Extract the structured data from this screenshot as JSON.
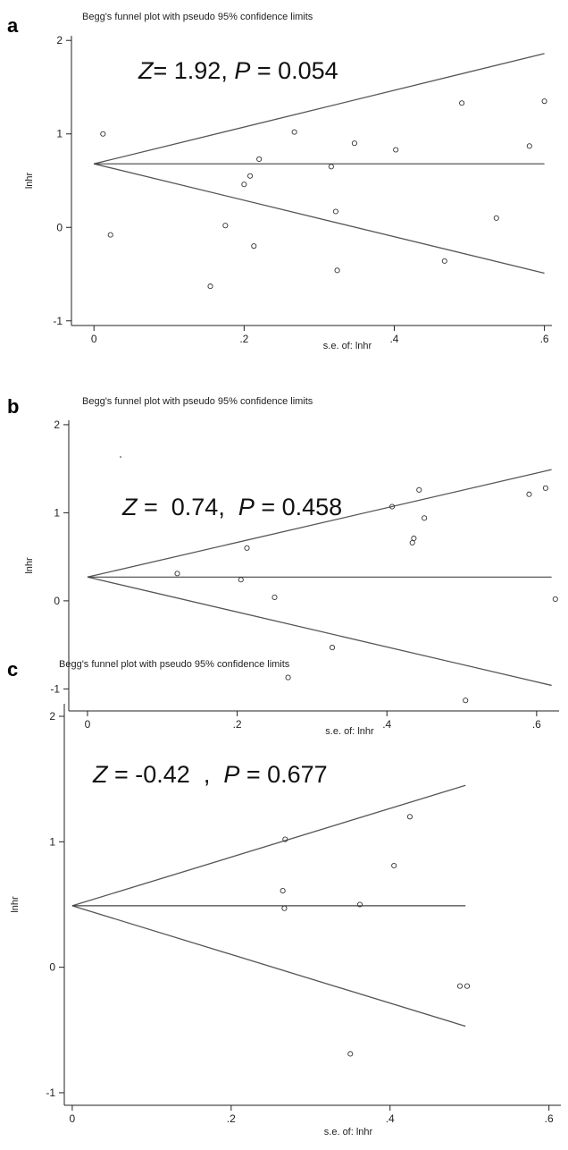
{
  "chart_data": [
    {
      "panel_label": "a",
      "type": "scatter",
      "title": "Begg's funnel plot with pseudo 95% confidence limits",
      "xlabel": "s.e. of: lnhr",
      "ylabel": "lnhr",
      "x_ticks": [
        0,
        0.2,
        0.4,
        0.6
      ],
      "x_tick_labels": [
        "0",
        ".2",
        ".4",
        ".6"
      ],
      "y_ticks": [
        -1,
        0,
        1,
        2
      ],
      "y_tick_labels": [
        "-1",
        "0",
        "1",
        "2"
      ],
      "xlim": [
        -0.03,
        0.61
      ],
      "ylim": [
        -1.05,
        2.05
      ],
      "stat": {
        "z_label": "Z",
        "z_text": "= 1.92, ",
        "p_label": "P",
        "p_text": " = 0.054"
      },
      "pooled_estimate": 0.68,
      "funnel": {
        "x_end": 0.6,
        "upper_end": 1.86,
        "lower_end": -0.49
      },
      "points": [
        {
          "x": 0.012,
          "y": 1.0
        },
        {
          "x": 0.022,
          "y": -0.08
        },
        {
          "x": 0.155,
          "y": -0.63
        },
        {
          "x": 0.175,
          "y": 0.02
        },
        {
          "x": 0.2,
          "y": 0.46
        },
        {
          "x": 0.208,
          "y": 0.55
        },
        {
          "x": 0.213,
          "y": -0.2
        },
        {
          "x": 0.22,
          "y": 0.73
        },
        {
          "x": 0.267,
          "y": 1.02
        },
        {
          "x": 0.316,
          "y": 0.65
        },
        {
          "x": 0.322,
          "y": 0.17
        },
        {
          "x": 0.324,
          "y": -0.46
        },
        {
          "x": 0.347,
          "y": 0.9
        },
        {
          "x": 0.402,
          "y": 0.83
        },
        {
          "x": 0.467,
          "y": -0.36
        },
        {
          "x": 0.49,
          "y": 1.33
        },
        {
          "x": 0.536,
          "y": 0.1
        },
        {
          "x": 0.58,
          "y": 0.87
        },
        {
          "x": 0.6,
          "y": 1.35
        }
      ]
    },
    {
      "panel_label": "b",
      "type": "scatter",
      "title": "Begg's funnel plot with pseudo 95% confidence limits",
      "xlabel": "s.e. of: lnhr",
      "ylabel": "lnhr",
      "x_ticks": [
        0,
        0.2,
        0.4,
        0.6
      ],
      "x_tick_labels": [
        "0",
        ".2",
        ".4",
        ".6"
      ],
      "y_ticks": [
        -1,
        0,
        1,
        2
      ],
      "y_tick_labels": [
        "-1",
        "0",
        "1",
        "2"
      ],
      "xlim": [
        -0.025,
        0.63
      ],
      "ylim": [
        -1.25,
        2.05
      ],
      "stat": {
        "z_label": "Z",
        "z_text": " =  0.74,  ",
        "p_label": "P",
        "p_text": " = 0.458"
      },
      "pooled_estimate": 0.27,
      "funnel": {
        "x_end": 0.62,
        "upper_end": 1.49,
        "lower_end": -0.96
      },
      "points": [
        {
          "x": 0.12,
          "y": 0.31
        },
        {
          "x": 0.205,
          "y": 0.24
        },
        {
          "x": 0.213,
          "y": 0.6
        },
        {
          "x": 0.25,
          "y": 0.04
        },
        {
          "x": 0.268,
          "y": -0.87
        },
        {
          "x": 0.327,
          "y": -0.53
        },
        {
          "x": 0.407,
          "y": 1.07
        },
        {
          "x": 0.434,
          "y": 0.66
        },
        {
          "x": 0.436,
          "y": 0.71
        },
        {
          "x": 0.443,
          "y": 1.26
        },
        {
          "x": 0.45,
          "y": 0.94
        },
        {
          "x": 0.505,
          "y": -1.13
        },
        {
          "x": 0.59,
          "y": 1.21
        },
        {
          "x": 0.612,
          "y": 1.28
        },
        {
          "x": 0.625,
          "y": 0.02
        }
      ]
    },
    {
      "panel_label": "c",
      "type": "scatter",
      "title": "Begg's funnel plot with pseudo 95% confidence limits",
      "xlabel": "s.e. of: lnhr",
      "ylabel": "lnhr",
      "x_ticks": [
        0,
        0.2,
        0.4,
        0.6
      ],
      "x_tick_labels": [
        "0",
        ".2",
        ".4",
        ".6"
      ],
      "y_ticks": [
        -1,
        0,
        1,
        2
      ],
      "y_tick_labels": [
        "-1",
        "0",
        "1",
        "2"
      ],
      "xlim": [
        -0.01,
        0.615
      ],
      "ylim": [
        -1.1,
        2.1
      ],
      "stat": {
        "z_label": "Z",
        "z_text": " = -0.42  ,  ",
        "p_label": "P",
        "p_text": " = 0.677"
      },
      "pooled_estimate": 0.49,
      "funnel": {
        "x_end": 0.495,
        "upper_end": 1.45,
        "lower_end": -0.47
      },
      "points": [
        {
          "x": 0.265,
          "y": 0.61
        },
        {
          "x": 0.267,
          "y": 0.47
        },
        {
          "x": 0.268,
          "y": 1.02
        },
        {
          "x": 0.35,
          "y": -0.69
        },
        {
          "x": 0.362,
          "y": 0.5
        },
        {
          "x": 0.405,
          "y": 0.81
        },
        {
          "x": 0.425,
          "y": 1.2
        },
        {
          "x": 0.488,
          "y": -0.15
        },
        {
          "x": 0.497,
          "y": -0.15
        }
      ]
    }
  ]
}
